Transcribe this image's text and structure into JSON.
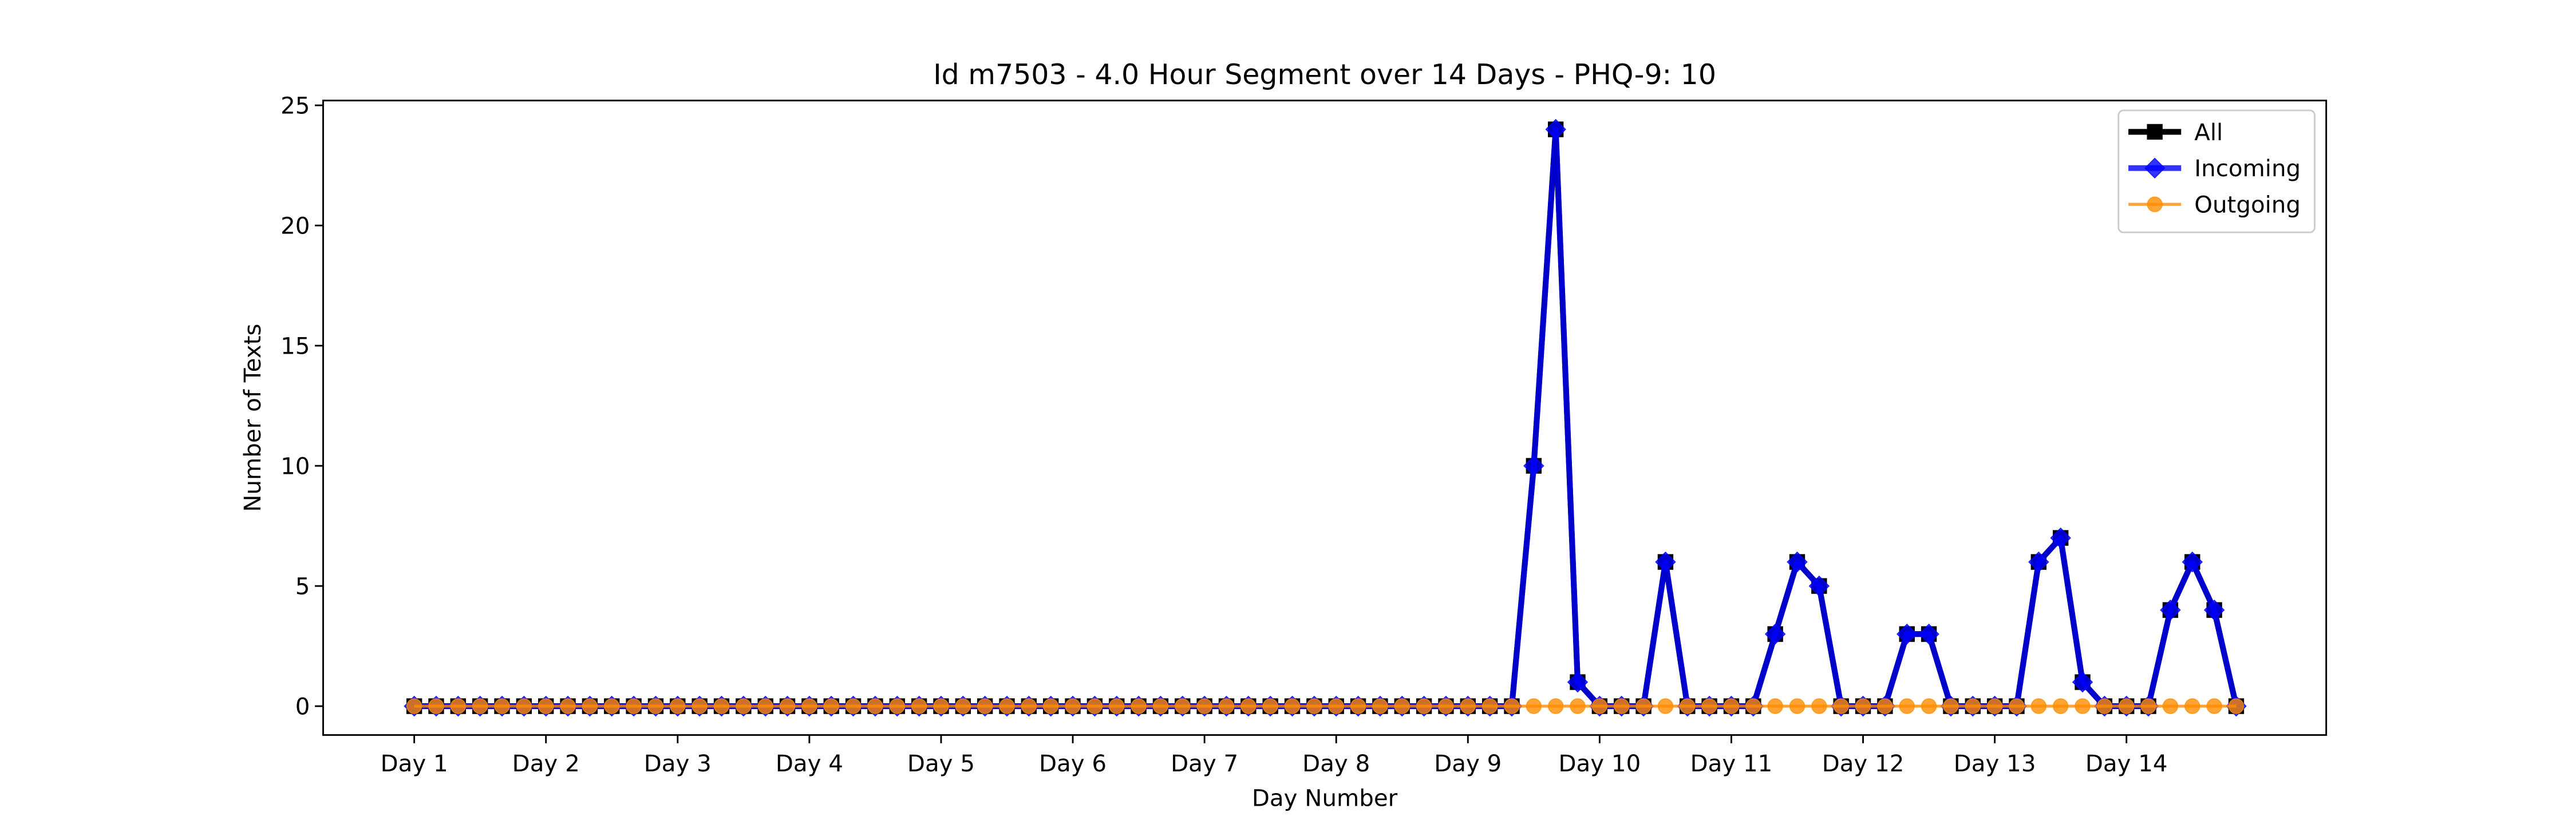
{
  "chart_data": {
    "type": "line",
    "title": "Id m7503 - 4.0 Hour Segment over 14 Days - PHQ-9: 10",
    "x_label": "Day Number",
    "y_label": "Number of Texts",
    "x": [
      0,
      1,
      2,
      3,
      4,
      5,
      6,
      7,
      8,
      9,
      10,
      11,
      12,
      13,
      14,
      15,
      16,
      17,
      18,
      19,
      20,
      21,
      22,
      23,
      24,
      25,
      26,
      27,
      28,
      29,
      30,
      31,
      32,
      33,
      34,
      35,
      36,
      37,
      38,
      39,
      40,
      41,
      42,
      43,
      44,
      45,
      46,
      47,
      48,
      49,
      50,
      51,
      52,
      53,
      54,
      55,
      56,
      57,
      58,
      59,
      60,
      61,
      62,
      63,
      64,
      65,
      66,
      67,
      68,
      69,
      70,
      71,
      72,
      73,
      74,
      75,
      76,
      77,
      78,
      79,
      80,
      81,
      82,
      83
    ],
    "series": [
      {
        "name": "All",
        "color": "#000000",
        "marker": "square",
        "values": [
          0,
          0,
          0,
          0,
          0,
          0,
          0,
          0,
          0,
          0,
          0,
          0,
          0,
          0,
          0,
          0,
          0,
          0,
          0,
          0,
          0,
          0,
          0,
          0,
          0,
          0,
          0,
          0,
          0,
          0,
          0,
          0,
          0,
          0,
          0,
          0,
          0,
          0,
          0,
          0,
          0,
          0,
          0,
          0,
          0,
          0,
          0,
          0,
          0,
          0,
          0,
          10,
          24,
          1,
          0,
          0,
          0,
          6,
          0,
          0,
          0,
          0,
          3,
          6,
          5,
          0,
          0,
          0,
          3,
          3,
          0,
          0,
          0,
          0,
          6,
          7,
          1,
          0,
          0,
          0,
          4,
          6,
          4,
          0
        ]
      },
      {
        "name": "Incoming",
        "color": "#0000ff",
        "marker": "diamond",
        "values": [
          0,
          0,
          0,
          0,
          0,
          0,
          0,
          0,
          0,
          0,
          0,
          0,
          0,
          0,
          0,
          0,
          0,
          0,
          0,
          0,
          0,
          0,
          0,
          0,
          0,
          0,
          0,
          0,
          0,
          0,
          0,
          0,
          0,
          0,
          0,
          0,
          0,
          0,
          0,
          0,
          0,
          0,
          0,
          0,
          0,
          0,
          0,
          0,
          0,
          0,
          0,
          10,
          24,
          1,
          0,
          0,
          0,
          6,
          0,
          0,
          0,
          0,
          3,
          6,
          5,
          0,
          0,
          0,
          3,
          3,
          0,
          0,
          0,
          0,
          6,
          7,
          1,
          0,
          0,
          0,
          4,
          6,
          4,
          0
        ]
      },
      {
        "name": "Outgoing",
        "color": "#ff8c00",
        "marker": "circle",
        "values": [
          0,
          0,
          0,
          0,
          0,
          0,
          0,
          0,
          0,
          0,
          0,
          0,
          0,
          0,
          0,
          0,
          0,
          0,
          0,
          0,
          0,
          0,
          0,
          0,
          0,
          0,
          0,
          0,
          0,
          0,
          0,
          0,
          0,
          0,
          0,
          0,
          0,
          0,
          0,
          0,
          0,
          0,
          0,
          0,
          0,
          0,
          0,
          0,
          0,
          0,
          0,
          0,
          0,
          0,
          0,
          0,
          0,
          0,
          0,
          0,
          0,
          0,
          0,
          0,
          0,
          0,
          0,
          0,
          0,
          0,
          0,
          0,
          0,
          0,
          0,
          0,
          0,
          0,
          0,
          0,
          0,
          0,
          0,
          0
        ]
      }
    ],
    "xlim": [
      -4.15,
      87.1
    ],
    "xticks": [
      {
        "value": 0,
        "label": "Day 1"
      },
      {
        "value": 6,
        "label": "Day 2"
      },
      {
        "value": 12,
        "label": "Day 3"
      },
      {
        "value": 18,
        "label": "Day 4"
      },
      {
        "value": 24,
        "label": "Day 5"
      },
      {
        "value": 30,
        "label": "Day 6"
      },
      {
        "value": 36,
        "label": "Day 7"
      },
      {
        "value": 42,
        "label": "Day 8"
      },
      {
        "value": 48,
        "label": "Day 9"
      },
      {
        "value": 54,
        "label": "Day 10"
      },
      {
        "value": 60,
        "label": "Day 11"
      },
      {
        "value": 66,
        "label": "Day 12"
      },
      {
        "value": 72,
        "label": "Day 13"
      },
      {
        "value": 78,
        "label": "Day 14"
      }
    ],
    "ylim": [
      -1.2,
      25.2
    ],
    "yticks": [
      0,
      5,
      10,
      15,
      20,
      25
    ],
    "grid": false,
    "legend": "upper right"
  }
}
